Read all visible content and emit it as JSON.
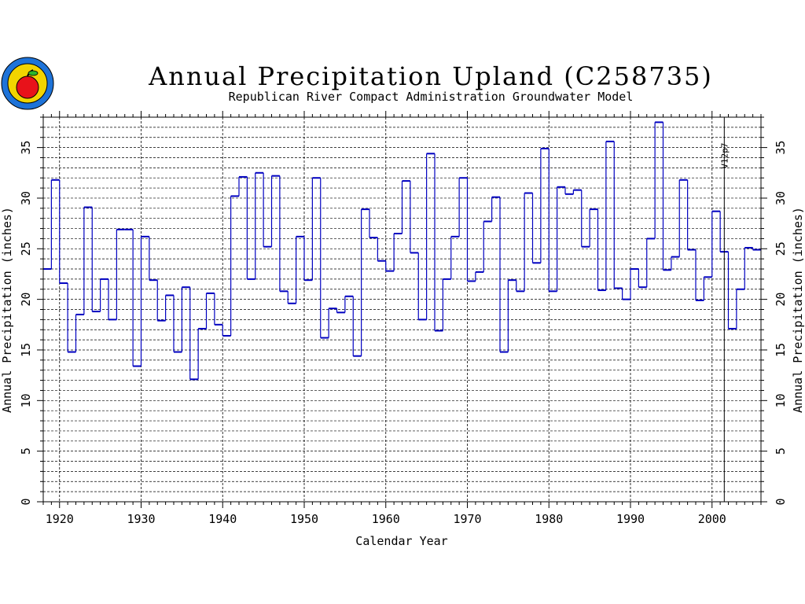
{
  "header": {
    "title": "Annual Precipitation Upland (C258735)",
    "subtitle": "Republican River Compact Administration Groundwater Model"
  },
  "logo": {
    "icon": "apple-seal-icon"
  },
  "chart_data": {
    "type": "line",
    "step": true,
    "title": "Annual Precipitation Upland (C258735)",
    "subtitle": "Republican River Compact Administration Groundwater Model",
    "xlabel": "Calendar Year",
    "ylabel": "Annual Precipitation (inches)",
    "ylabel_right": "Annual Precipitation (inches)",
    "xlim": [
      1918,
      2006
    ],
    "ylim": [
      0,
      38
    ],
    "x_ticks": [
      1920,
      1930,
      1940,
      1950,
      1960,
      1970,
      1980,
      1990,
      2000
    ],
    "y_ticks": [
      0,
      5,
      10,
      15,
      20,
      25,
      30,
      35
    ],
    "grid": true,
    "colors": {
      "series": "#0000c0",
      "grid": "#000000"
    },
    "annotation": {
      "text": "V12p7",
      "year": 2001
    },
    "series": [
      {
        "years": [
          1918,
          1919,
          1920,
          1921,
          1922,
          1923,
          1924,
          1925,
          1926,
          1927,
          1928,
          1929,
          1930,
          1931,
          1932,
          1933,
          1934,
          1935,
          1936,
          1937,
          1938,
          1939,
          1940,
          1941,
          1942,
          1943,
          1944,
          1945,
          1946,
          1947,
          1948,
          1949,
          1950,
          1951,
          1952,
          1953,
          1954,
          1955,
          1956,
          1957,
          1958,
          1959,
          1960,
          1961,
          1962,
          1963,
          1964,
          1965,
          1966,
          1967,
          1968,
          1969,
          1970,
          1971,
          1972,
          1973,
          1974,
          1975,
          1976,
          1977,
          1978,
          1979,
          1980,
          1981,
          1982,
          1983,
          1984,
          1985,
          1986,
          1987,
          1988,
          1989,
          1990,
          1991,
          1992,
          1993,
          1994,
          1995,
          1996,
          1997,
          1998,
          1999,
          2000,
          2001,
          2002,
          2003,
          2004,
          2005
        ],
        "values": [
          23.0,
          31.8,
          21.6,
          14.8,
          18.5,
          29.1,
          18.8,
          22.0,
          18.0,
          26.9,
          26.9,
          13.4,
          26.2,
          21.9,
          17.9,
          20.4,
          14.8,
          21.2,
          12.1,
          17.1,
          20.6,
          17.5,
          16.4,
          30.2,
          32.1,
          22.0,
          32.5,
          25.2,
          32.2,
          20.8,
          19.6,
          26.2,
          21.9,
          32.0,
          16.2,
          19.1,
          18.7,
          20.3,
          14.4,
          28.9,
          26.1,
          23.8,
          22.8,
          26.5,
          31.7,
          24.6,
          18.0,
          34.4,
          16.9,
          22.0,
          26.2,
          32.0,
          21.8,
          22.7,
          27.7,
          30.1,
          14.8,
          21.9,
          20.8,
          30.5,
          23.6,
          34.9,
          20.8,
          31.1,
          30.4,
          30.8,
          25.2,
          28.9,
          20.9,
          35.6,
          21.1,
          20.0,
          23.0,
          21.2,
          26.0,
          37.5,
          22.9,
          24.2,
          31.8,
          24.9,
          19.9,
          22.2,
          28.7,
          24.7,
          17.1,
          21.0,
          25.1,
          24.9
        ]
      }
    ]
  }
}
